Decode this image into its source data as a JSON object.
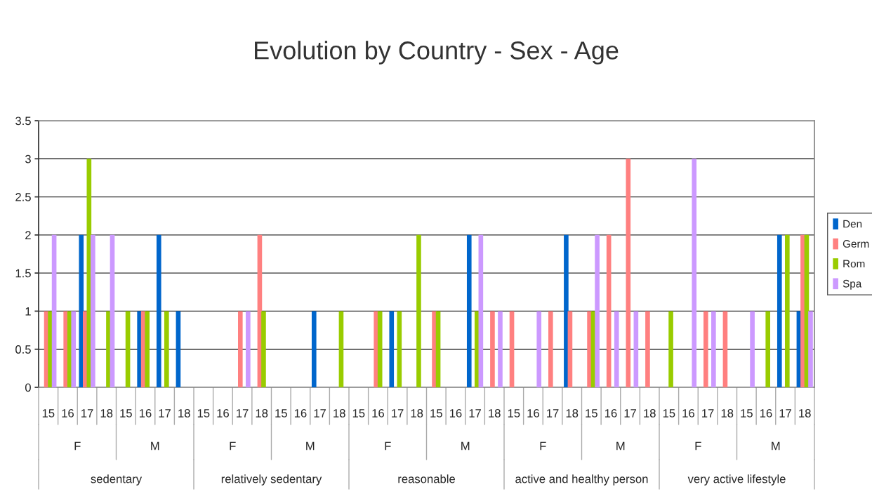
{
  "chart_data": {
    "type": "bar",
    "title": "Evolution by Country - Sex - Age",
    "categories": [
      "15",
      "16",
      "17",
      "18",
      "15",
      "16",
      "17",
      "18",
      "15",
      "16",
      "17",
      "18",
      "15",
      "16",
      "17",
      "18",
      "15",
      "16",
      "17",
      "18",
      "15",
      "16",
      "17",
      "18",
      "15",
      "16",
      "17",
      "18",
      "15",
      "16",
      "17",
      "18",
      "15",
      "16",
      "17",
      "18",
      "15",
      "16",
      "17",
      "18"
    ],
    "annotations": [
      "F",
      "M",
      "F",
      "M",
      "F",
      "M",
      "F",
      "M",
      "F",
      "M",
      "sedentary",
      "relatively sedentary",
      "reasonable",
      "active and healthy person",
      "very active lifestyle"
    ],
    "series": [
      {
        "name": "Den",
        "color": "#0066cc",
        "values": [
          null,
          null,
          2,
          null,
          null,
          1,
          2,
          1,
          null,
          null,
          null,
          null,
          null,
          null,
          1,
          null,
          null,
          null,
          1,
          null,
          null,
          null,
          2,
          null,
          null,
          null,
          null,
          2,
          null,
          null,
          null,
          null,
          null,
          null,
          null,
          null,
          null,
          null,
          2,
          1
        ]
      },
      {
        "name": "Germ",
        "color": "#ff8080",
        "values": [
          1,
          1,
          1,
          null,
          null,
          1,
          null,
          null,
          null,
          null,
          1,
          2,
          null,
          null,
          null,
          null,
          null,
          1,
          null,
          null,
          1,
          null,
          null,
          1,
          1,
          null,
          1,
          1,
          1,
          2,
          3,
          1,
          null,
          null,
          1,
          1,
          null,
          null,
          null,
          2
        ]
      },
      {
        "name": "Rom",
        "color": "#99cc00",
        "values": [
          1,
          1,
          3,
          1,
          1,
          1,
          1,
          null,
          null,
          null,
          null,
          1,
          null,
          null,
          null,
          1,
          null,
          1,
          1,
          2,
          1,
          null,
          1,
          null,
          null,
          null,
          null,
          null,
          1,
          null,
          null,
          null,
          1,
          null,
          null,
          null,
          null,
          1,
          2,
          2
        ]
      },
      {
        "name": "Spa",
        "color": "#cc99ff",
        "values": [
          2,
          1,
          2,
          2,
          null,
          null,
          null,
          null,
          null,
          null,
          1,
          null,
          null,
          null,
          null,
          null,
          null,
          null,
          null,
          null,
          null,
          null,
          2,
          1,
          null,
          1,
          null,
          null,
          2,
          1,
          1,
          null,
          null,
          3,
          1,
          null,
          1,
          null,
          null,
          1
        ]
      }
    ],
    "ylim": [
      0,
      3.5
    ],
    "yticks": [
      0,
      0.5,
      1,
      1.5,
      2,
      2.5,
      3,
      3.5
    ],
    "grid": "y",
    "legend": "right"
  }
}
